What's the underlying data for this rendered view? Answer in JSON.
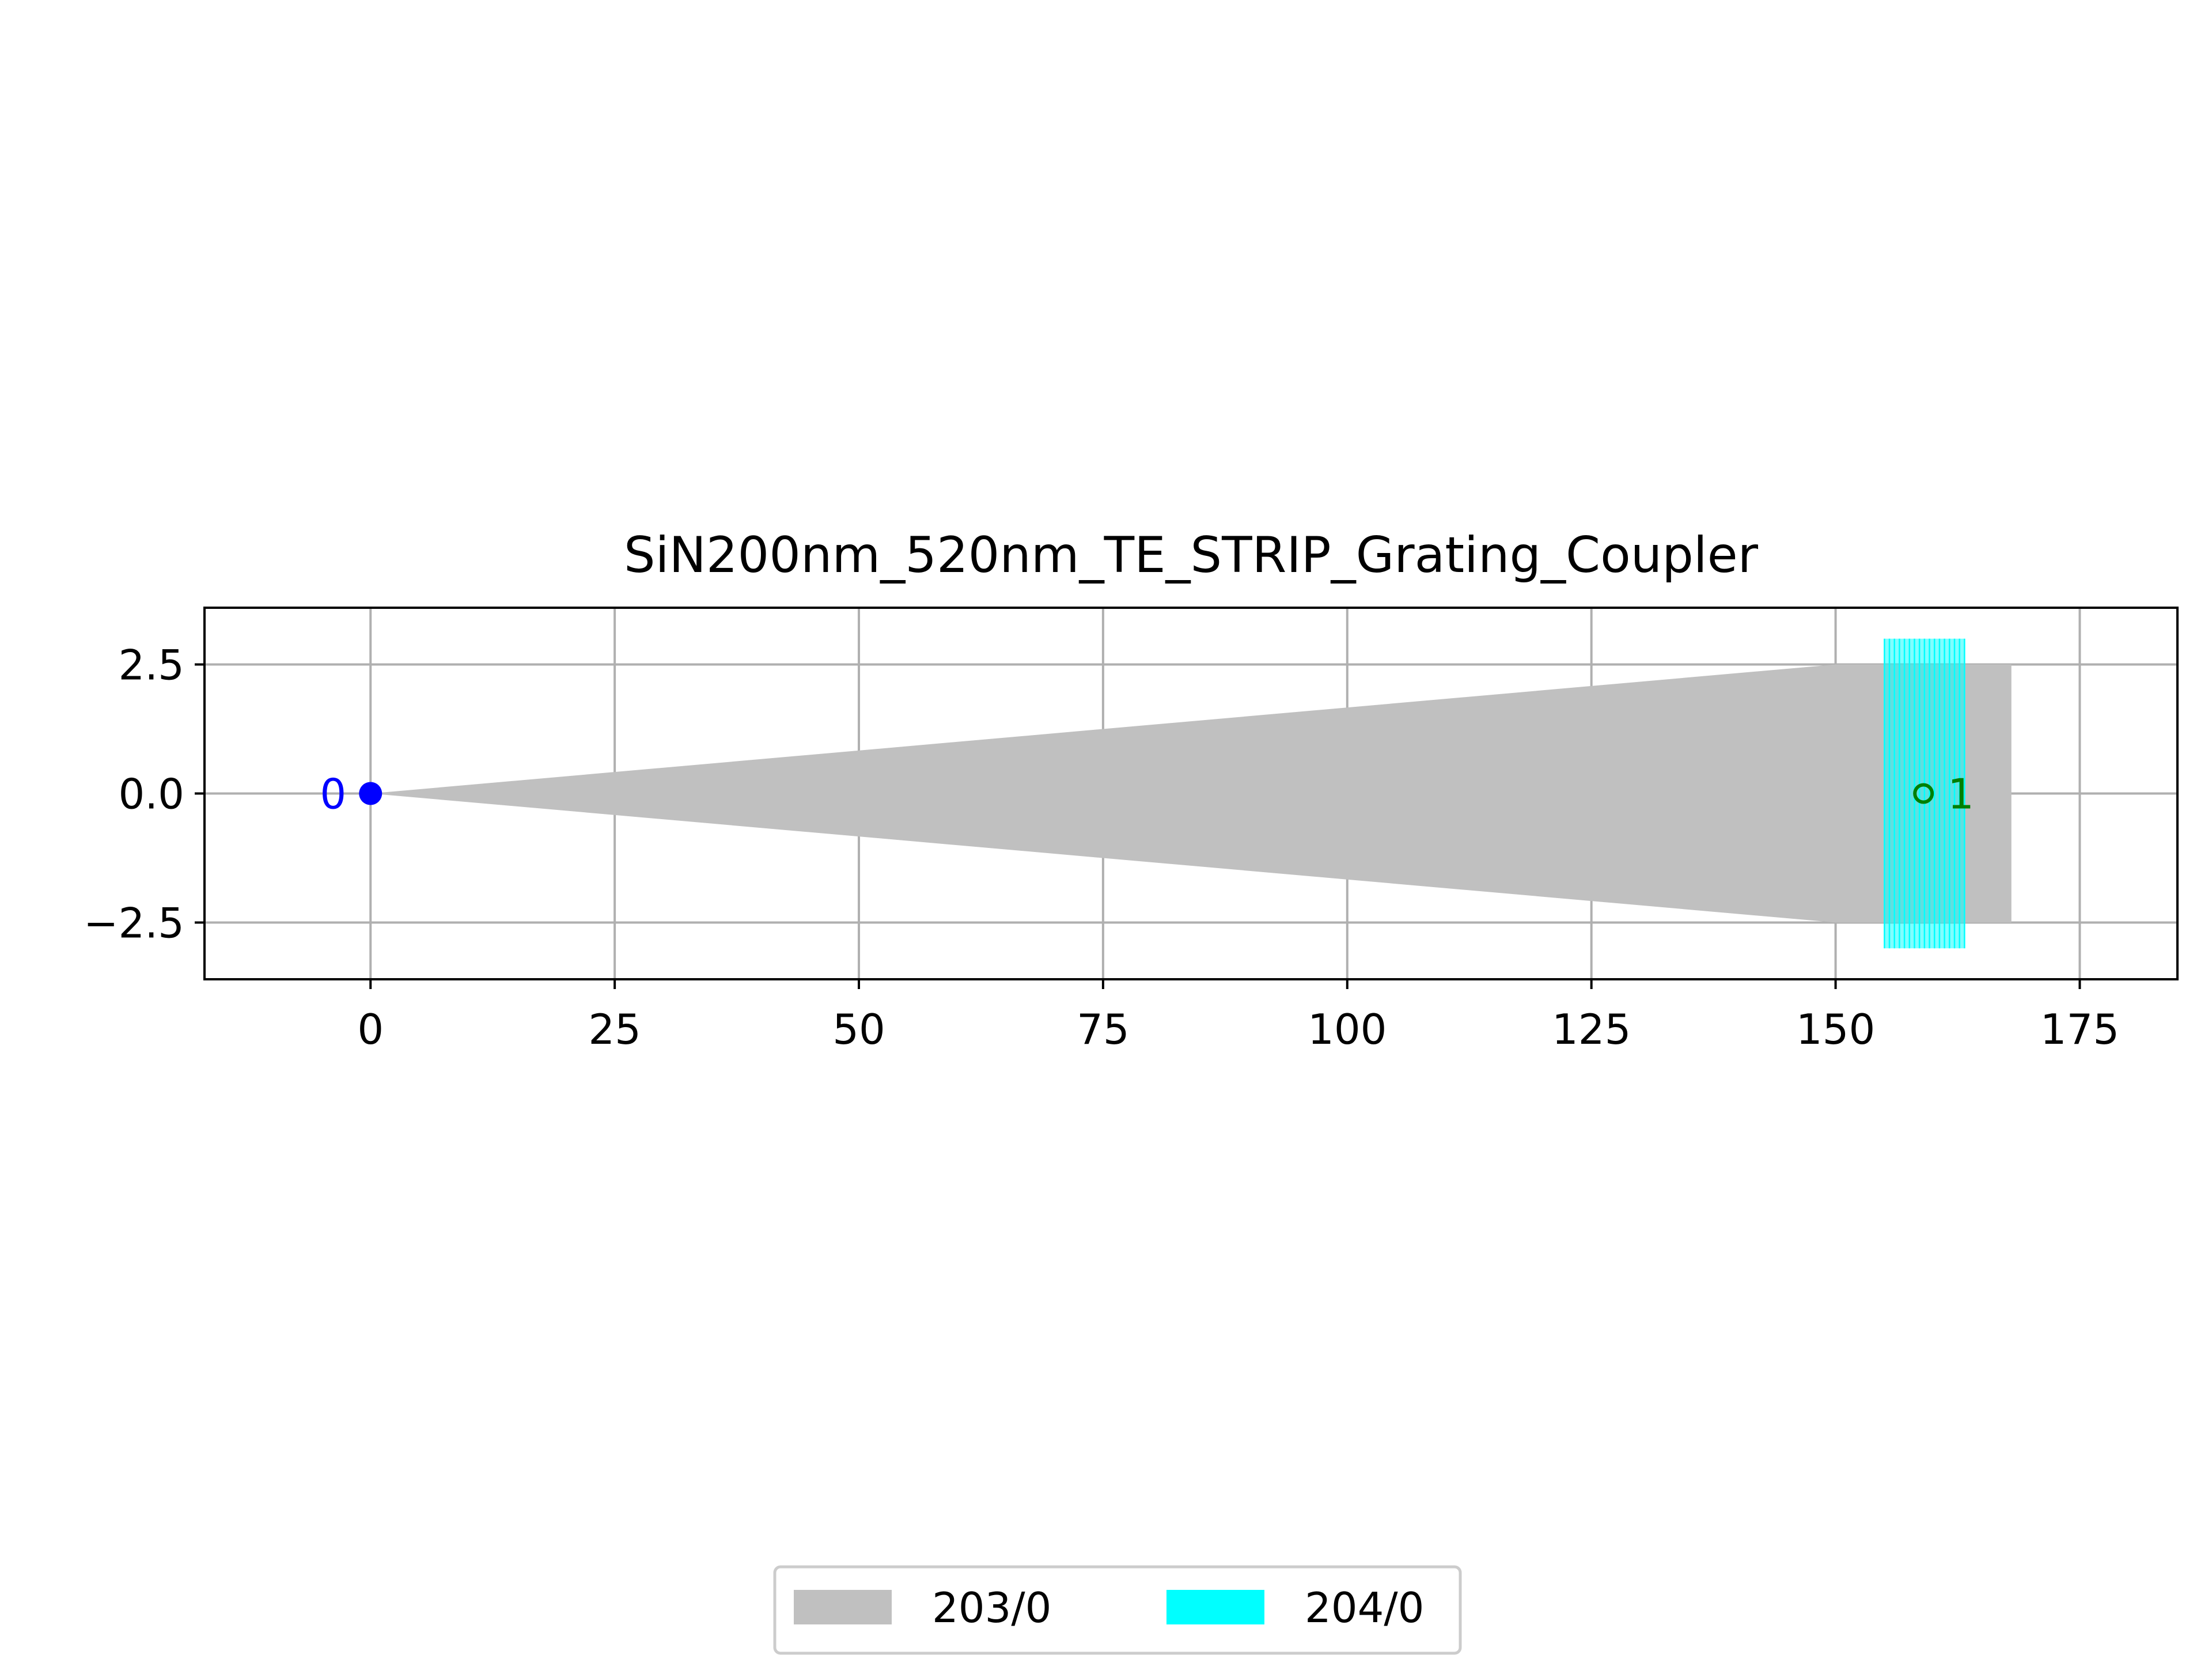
{
  "chart_data": {
    "type": "area",
    "title": "SiN200nm_520nm_TE_STRIP_Grating_Coupler",
    "xlabel": "",
    "ylabel": "",
    "xlim": [
      -17,
      185
    ],
    "ylim": [
      -3.6,
      3.6
    ],
    "xticks": [
      0,
      25,
      50,
      75,
      100,
      125,
      150,
      175
    ],
    "yticks": [
      2.5,
      0.0,
      -2.5
    ],
    "xtick_labels": [
      "0",
      "25",
      "50",
      "75",
      "100",
      "125",
      "150",
      "175"
    ],
    "ytick_labels": [
      "2.5",
      "0.0",
      "−2.5"
    ],
    "grid": true,
    "series": [
      {
        "name": "203/0",
        "color": "#c0c0c0",
        "polygon": [
          [
            0,
            0
          ],
          [
            150,
            2.5
          ],
          [
            168,
            2.5
          ],
          [
            168,
            -2.5
          ],
          [
            150,
            -2.5
          ],
          [
            0,
            0
          ]
        ]
      },
      {
        "name": "204/0",
        "color": "#00ffff",
        "grating": {
          "x_start": 155,
          "x_end": 163.2,
          "y_min": -3.0,
          "y_max": 3.0,
          "lines": 17
        }
      }
    ],
    "ports": [
      {
        "label": "0",
        "x": 0,
        "y": 0,
        "color": "#0000ff",
        "filled": true
      },
      {
        "label": "1",
        "x": 159,
        "y": 0,
        "color": "#008000",
        "filled": false
      }
    ],
    "legend": {
      "placement": "bottom-center",
      "entries": [
        {
          "label": "203/0",
          "color": "#c0c0c0"
        },
        {
          "label": "204/0",
          "color": "#00ffff"
        }
      ]
    }
  }
}
